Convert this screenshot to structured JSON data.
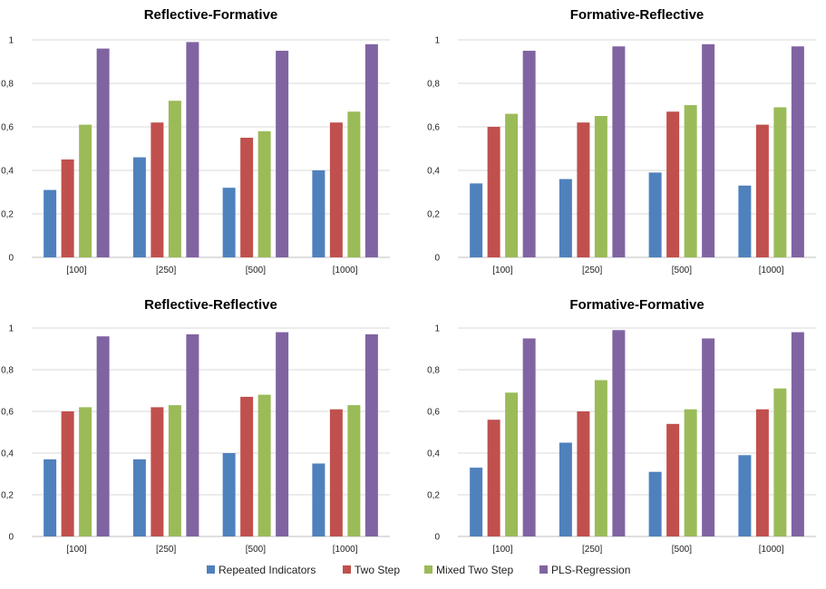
{
  "colors": {
    "repeated_indicators": "#4f81bd",
    "two_step": "#c0504d",
    "mixed_two_step": "#9bbb59",
    "pls_regression": "#8064a2"
  },
  "legend": {
    "items": [
      {
        "label": "Repeated Indicators",
        "color": "#4f81bd"
      },
      {
        "label": "Two Step",
        "color": "#c0504d"
      },
      {
        "label": "Mixed Two Step",
        "color": "#9bbb59"
      },
      {
        "label": "PLS-Regression",
        "color": "#8064a2"
      }
    ]
  },
  "chart_data": [
    {
      "type": "bar",
      "title": "Reflective-Formative",
      "categories": [
        "[100]",
        "[250]",
        "[500]",
        "[1000]"
      ],
      "ylim": [
        0,
        1
      ],
      "yticks": [
        "0",
        "0,2",
        "0,4",
        "0,6",
        "0,8",
        "1"
      ],
      "grid": true,
      "series": [
        {
          "name": "Repeated Indicators",
          "values": [
            0.31,
            0.46,
            0.32,
            0.4
          ]
        },
        {
          "name": "Two Step",
          "values": [
            0.45,
            0.62,
            0.55,
            0.62
          ]
        },
        {
          "name": "Mixed Two Step",
          "values": [
            0.61,
            0.72,
            0.58,
            0.67
          ]
        },
        {
          "name": "PLS-Regression",
          "values": [
            0.96,
            0.99,
            0.95,
            0.98
          ]
        }
      ]
    },
    {
      "type": "bar",
      "title": "Formative-Reflective",
      "categories": [
        "[100]",
        "[250]",
        "[500]",
        "[1000]"
      ],
      "ylim": [
        0,
        1
      ],
      "yticks": [
        "0",
        "0,2",
        "0,4",
        "0,6",
        "0,8",
        "1"
      ],
      "grid": true,
      "series": [
        {
          "name": "Repeated Indicators",
          "values": [
            0.34,
            0.36,
            0.39,
            0.33
          ]
        },
        {
          "name": "Two Step",
          "values": [
            0.6,
            0.62,
            0.67,
            0.61
          ]
        },
        {
          "name": "Mixed Two Step",
          "values": [
            0.66,
            0.65,
            0.7,
            0.69
          ]
        },
        {
          "name": "PLS-Regression",
          "values": [
            0.95,
            0.97,
            0.98,
            0.97
          ]
        }
      ]
    },
    {
      "type": "bar",
      "title": "Reflective-Reflective",
      "categories": [
        "[100]",
        "[250]",
        "[500]",
        "[1000]"
      ],
      "ylim": [
        0,
        1
      ],
      "yticks": [
        "0",
        "0,2",
        "0,4",
        "0,6",
        "0,8",
        "1"
      ],
      "grid": true,
      "series": [
        {
          "name": "Repeated Indicators",
          "values": [
            0.37,
            0.37,
            0.4,
            0.35
          ]
        },
        {
          "name": "Two Step",
          "values": [
            0.6,
            0.62,
            0.67,
            0.61
          ]
        },
        {
          "name": "Mixed Two Step",
          "values": [
            0.62,
            0.63,
            0.68,
            0.63
          ]
        },
        {
          "name": "PLS-Regression",
          "values": [
            0.96,
            0.97,
            0.98,
            0.97
          ]
        }
      ]
    },
    {
      "type": "bar",
      "title": "Formative-Formative",
      "categories": [
        "[100]",
        "[250]",
        "[500]",
        "[1000]"
      ],
      "ylim": [
        0,
        1
      ],
      "yticks": [
        "0",
        "0,2",
        "0,4",
        "0,6",
        "0,8",
        "1"
      ],
      "grid": true,
      "series": [
        {
          "name": "Repeated Indicators",
          "values": [
            0.33,
            0.45,
            0.31,
            0.39
          ]
        },
        {
          "name": "Two Step",
          "values": [
            0.56,
            0.6,
            0.54,
            0.61
          ]
        },
        {
          "name": "Mixed Two Step",
          "values": [
            0.69,
            0.75,
            0.61,
            0.71
          ]
        },
        {
          "name": "PLS-Regression",
          "values": [
            0.95,
            0.99,
            0.95,
            0.98
          ]
        }
      ]
    }
  ]
}
